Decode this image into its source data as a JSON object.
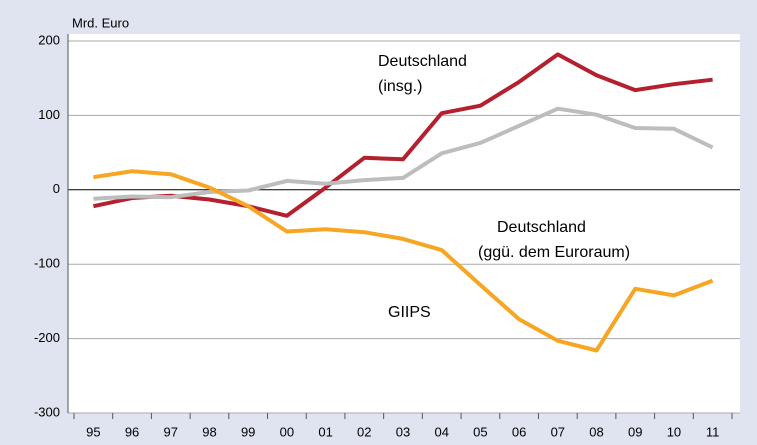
{
  "chart_data": {
    "type": "line",
    "ylabel": "Mrd. Euro",
    "categories": [
      "95",
      "96",
      "97",
      "98",
      "99",
      "00",
      "01",
      "02",
      "03",
      "04",
      "05",
      "06",
      "07",
      "08",
      "09",
      "10",
      "11"
    ],
    "series": [
      {
        "label": [
          "Deutschland",
          "(insg.)"
        ],
        "color": "#b4202e",
        "values": [
          -22,
          -11,
          -8,
          -13,
          -22,
          -35,
          3,
          43,
          41,
          103,
          113,
          145,
          182,
          154,
          134,
          142,
          148
        ]
      },
      {
        "label": [
          "Deutschland",
          "(ggü. dem Euroraum)"
        ],
        "color": "#bdbdbd",
        "values": [
          -12,
          -9,
          -10,
          -3,
          -1,
          12,
          8,
          13,
          16,
          49,
          63,
          86,
          109,
          101,
          83,
          82,
          57
        ]
      },
      {
        "label": [
          "GIIPS"
        ],
        "color": "#f6a623",
        "values": [
          17,
          25,
          21,
          3,
          -22,
          -56,
          -53,
          -57,
          -66,
          -81,
          -128,
          -174,
          -203,
          -216,
          -133,
          -142,
          -122
        ]
      }
    ],
    "ylim": [
      -300,
      200
    ],
    "yticks": [
      -300,
      -200,
      -100,
      0,
      100,
      200
    ],
    "grid": true
  }
}
